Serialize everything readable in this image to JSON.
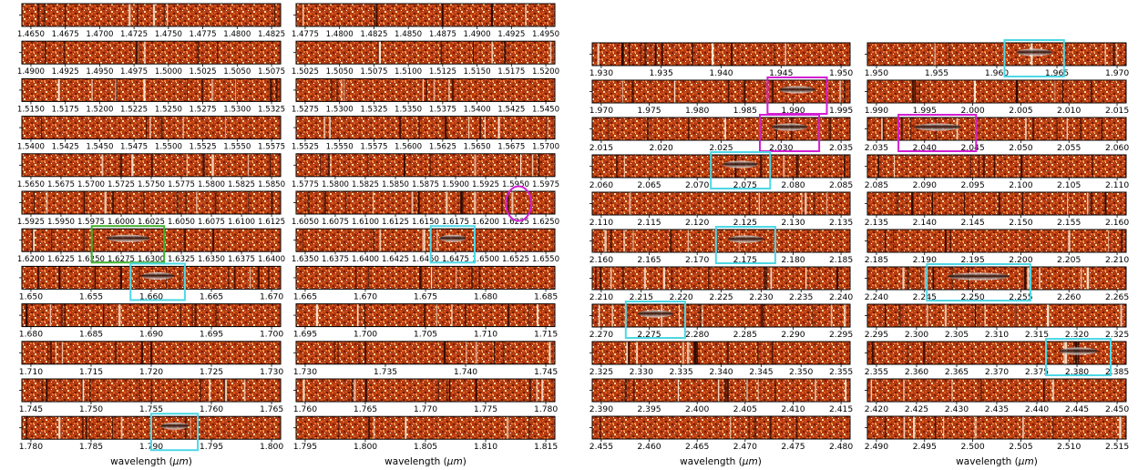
{
  "figure": {
    "xlabel_text": "wavelength (",
    "xlabel_unit": "μm",
    "xlabel_close": ")"
  },
  "colors": {
    "border": "#000000",
    "cyan": "#4dd8e6",
    "magenta": "#d21fd2",
    "green": "#41b02c"
  },
  "chart_data": {
    "type": "heatmap",
    "columns": [
      {
        "xlabel": "wavelength (μm)",
        "panels": [
          {
            "tick_labels": [
              "1.4650",
              "1.4675",
              "1.4700",
              "1.4725",
              "1.4750",
              "1.4775",
              "1.4800",
              "1.4825"
            ]
          },
          {
            "tick_labels": [
              "1.4900",
              "1.4925",
              "1.4950",
              "1.4975",
              "1.5000",
              "1.5025",
              "1.5050",
              "1.5075"
            ]
          },
          {
            "tick_labels": [
              "1.5150",
              "1.5175",
              "1.5200",
              "1.5225",
              "1.5250",
              "1.5275",
              "1.5300",
              "1.5325"
            ]
          },
          {
            "tick_labels": [
              "1.5400",
              "1.5425",
              "1.5450",
              "1.5475",
              "1.5500",
              "1.5525",
              "1.5550",
              "1.5575"
            ]
          },
          {
            "tick_labels": [
              "1.5650",
              "1.5675",
              "1.5700",
              "1.5725",
              "1.5750",
              "1.5775",
              "1.5800",
              "1.5825",
              "1.5850"
            ]
          },
          {
            "tick_labels": [
              "1.5925",
              "1.5950",
              "1.5975",
              "1.6000",
              "1.6025",
              "1.6050",
              "1.6075",
              "1.6100",
              "1.6125"
            ]
          },
          {
            "tick_labels": [
              "1.6200",
              "1.6225",
              "1.6250",
              "1.6275",
              "1.6300",
              "1.6325",
              "1.6350",
              "1.6375",
              "1.6400"
            ]
          },
          {
            "tick_labels": [
              "1.650",
              "1.655",
              "1.660",
              "1.665",
              "1.670"
            ]
          },
          {
            "tick_labels": [
              "1.680",
              "1.685",
              "1.690",
              "1.695",
              "1.700"
            ]
          },
          {
            "tick_labels": [
              "1.710",
              "1.715",
              "1.720",
              "1.725",
              "1.730"
            ]
          },
          {
            "tick_labels": [
              "1.745",
              "1.750",
              "1.755",
              "1.760",
              "1.765"
            ]
          },
          {
            "tick_labels": [
              "1.780",
              "1.785",
              "1.790",
              "1.795",
              "1.800"
            ]
          }
        ]
      },
      {
        "xlabel": "wavelength (μm)",
        "panels": [
          {
            "tick_labels": [
              "1.4775",
              "1.4800",
              "1.4825",
              "1.4850",
              "1.4875",
              "1.4900",
              "1.4925",
              "1.4950"
            ]
          },
          {
            "tick_labels": [
              "1.5025",
              "1.5050",
              "1.5075",
              "1.5100",
              "1.5125",
              "1.5150",
              "1.5175",
              "1.5200"
            ]
          },
          {
            "tick_labels": [
              "1.5275",
              "1.5300",
              "1.5325",
              "1.5350",
              "1.5375",
              "1.5400",
              "1.5425",
              "1.5450"
            ]
          },
          {
            "tick_labels": [
              "1.5525",
              "1.5550",
              "1.5575",
              "1.5600",
              "1.5625",
              "1.5650",
              "1.5675",
              "1.5700"
            ]
          },
          {
            "tick_labels": [
              "1.5775",
              "1.5800",
              "1.5825",
              "1.5850",
              "1.5875",
              "1.5900",
              "1.5925",
              "1.5950",
              "1.5975"
            ]
          },
          {
            "tick_labels": [
              "1.6050",
              "1.6075",
              "1.6100",
              "1.6125",
              "1.6150",
              "1.6175",
              "1.6200",
              "1.6225",
              "1.6250"
            ]
          },
          {
            "tick_labels": [
              "1.6350",
              "1.6375",
              "1.6400",
              "1.6425",
              "1.6450",
              "1.6475",
              "1.6500",
              "1.6525",
              "1.6550"
            ]
          },
          {
            "tick_labels": [
              "1.665",
              "1.670",
              "1.675",
              "1.680",
              "1.685"
            ]
          },
          {
            "tick_labels": [
              "1.695",
              "1.700",
              "1.705",
              "1.710",
              "1.715"
            ]
          },
          {
            "tick_labels": [
              "1.730",
              "1.735",
              "1.740",
              "1.745"
            ]
          },
          {
            "tick_labels": [
              "1.760",
              "1.765",
              "1.770",
              "1.775",
              "1.780"
            ]
          },
          {
            "tick_labels": [
              "1.795",
              "1.800",
              "1.805",
              "1.810",
              "1.815"
            ]
          }
        ]
      },
      {
        "xlabel": "wavelength (μm)",
        "panels": [
          {
            "tick_labels": [
              "1.930",
              "1.935",
              "1.940",
              "1.945",
              "1.950"
            ]
          },
          {
            "tick_labels": [
              "1.970",
              "1.975",
              "1.980",
              "1.985",
              "1.990",
              "1.995"
            ]
          },
          {
            "tick_labels": [
              "2.015",
              "2.020",
              "2.025",
              "2.030",
              "2.035"
            ]
          },
          {
            "tick_labels": [
              "2.060",
              "2.065",
              "2.070",
              "2.075",
              "2.080",
              "2.085"
            ]
          },
          {
            "tick_labels": [
              "2.110",
              "2.115",
              "2.120",
              "2.125",
              "2.130",
              "2.135"
            ]
          },
          {
            "tick_labels": [
              "2.160",
              "2.165",
              "2.170",
              "2.175",
              "2.180",
              "2.185"
            ]
          },
          {
            "tick_labels": [
              "2.210",
              "2.215",
              "2.220",
              "2.225",
              "2.230",
              "2.235",
              "2.240"
            ]
          },
          {
            "tick_labels": [
              "2.270",
              "2.275",
              "2.280",
              "2.285",
              "2.290",
              "2.295"
            ]
          },
          {
            "tick_labels": [
              "2.325",
              "2.330",
              "2.335",
              "2.340",
              "2.345",
              "2.350",
              "2.355"
            ]
          },
          {
            "tick_labels": [
              "2.390",
              "2.395",
              "2.400",
              "2.405",
              "2.410",
              "2.415"
            ]
          },
          {
            "tick_labels": [
              "2.455",
              "2.460",
              "2.465",
              "2.470",
              "2.475",
              "2.480"
            ]
          }
        ]
      },
      {
        "xlabel": "wavelength (μm)",
        "panels": [
          {
            "tick_labels": [
              "1.950",
              "1.955",
              "1.960",
              "1.965",
              "1.970"
            ]
          },
          {
            "tick_labels": [
              "1.990",
              "1.995",
              "2.000",
              "2.005",
              "2.010",
              "2.015"
            ]
          },
          {
            "tick_labels": [
              "2.035",
              "2.040",
              "2.045",
              "2.050",
              "2.055",
              "2.060"
            ]
          },
          {
            "tick_labels": [
              "2.085",
              "2.090",
              "2.095",
              "2.100",
              "2.105",
              "2.110"
            ]
          },
          {
            "tick_labels": [
              "2.135",
              "2.140",
              "2.145",
              "2.150",
              "2.155",
              "2.160"
            ]
          },
          {
            "tick_labels": [
              "2.185",
              "2.190",
              "2.195",
              "2.200",
              "2.205",
              "2.210"
            ]
          },
          {
            "tick_labels": [
              "2.240",
              "2.245",
              "2.250",
              "2.255",
              "2.260",
              "2.265"
            ]
          },
          {
            "tick_labels": [
              "2.295",
              "2.300",
              "2.305",
              "2.310",
              "2.315",
              "2.320",
              "2.325"
            ]
          },
          {
            "tick_labels": [
              "2.355",
              "2.360",
              "2.365",
              "2.370",
              "2.375",
              "2.380",
              "2.385"
            ]
          },
          {
            "tick_labels": [
              "2.420",
              "2.425",
              "2.430",
              "2.435",
              "2.440",
              "2.445",
              "2.450"
            ]
          },
          {
            "tick_labels": [
              "2.490",
              "2.495",
              "2.500",
              "2.505",
              "2.510",
              "2.515"
            ]
          }
        ]
      }
    ]
  }
}
